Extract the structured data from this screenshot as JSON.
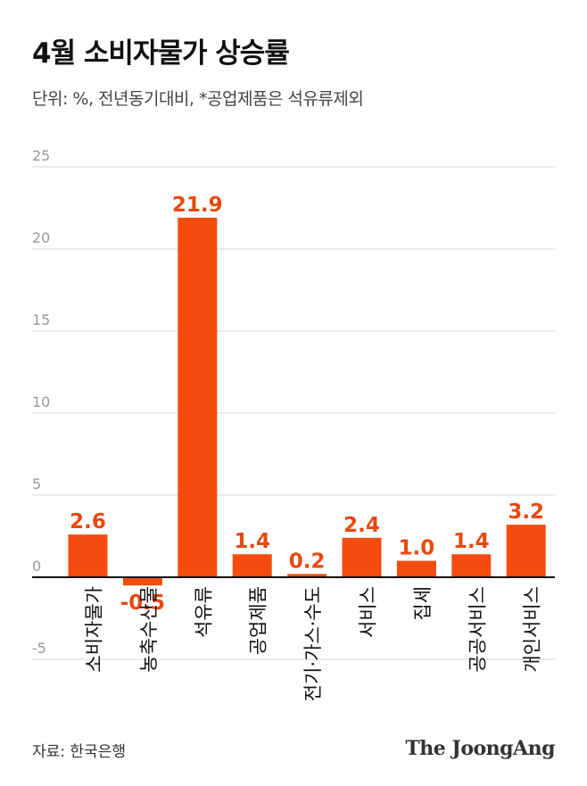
{
  "header": {
    "title": "4월 소비자물가 상승률",
    "subtitle": "단위: %, 전년동기대비, *공업제품은 석유류제외"
  },
  "footer": {
    "source": "자료: 한국은행",
    "logo_text": "The JoongAng"
  },
  "colors": {
    "bar": "#f54b0f",
    "label": "#e8490f",
    "grid": "#d9d9d9",
    "axis": "#111111",
    "tick": "#999999"
  },
  "chart_data": {
    "type": "bar",
    "categories": [
      "소비자물가",
      "농축수산물",
      "석유류",
      "공업제품",
      "전기·가스·수도",
      "서비스",
      "집세",
      "공공서비스",
      "개인서비스"
    ],
    "values": [
      2.6,
      -0.5,
      21.9,
      1.4,
      0.2,
      2.4,
      1.0,
      1.4,
      3.2
    ],
    "data_labels": [
      "2.6",
      "-0.5",
      "21.9",
      "1.4",
      "0.2",
      "2.4",
      "1.0",
      "1.4",
      "3.2"
    ],
    "yticks": [
      25,
      20,
      15,
      10,
      5,
      0,
      -5
    ],
    "ytick_labels": [
      "25",
      "20",
      "15",
      "10",
      "5",
      "0",
      "-5"
    ],
    "ylim": [
      -5,
      25
    ],
    "grid": true,
    "legend": "none"
  }
}
